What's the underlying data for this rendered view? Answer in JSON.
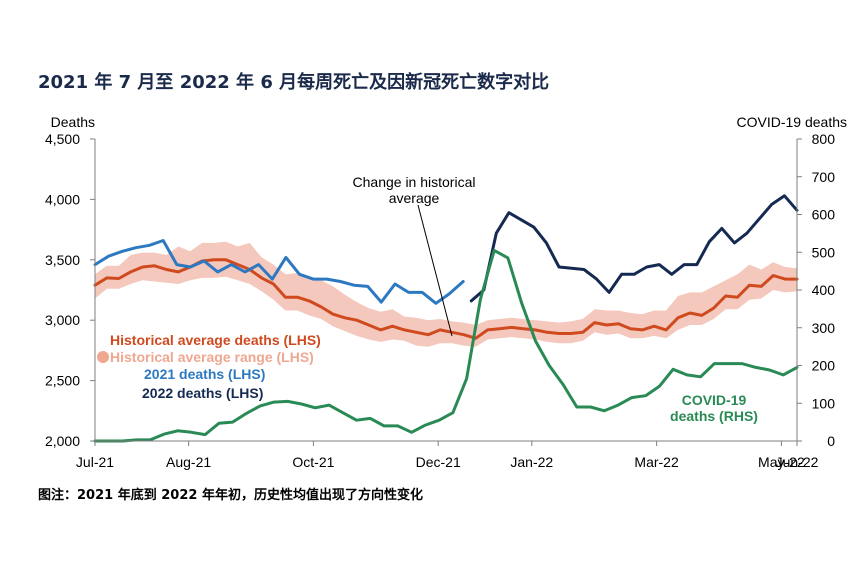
{
  "title": "2021 年 7 月至 2022 年 6 月每周死亡及因新冠死亡数字对比",
  "footnote": "图注：2021 年底到 2022 年年初，历史性均值出现了方向性变化",
  "colors": {
    "hist_avg": "#d04a1f",
    "hist_range": "#f4c8bc",
    "hist_range_legend": "#f0a791",
    "y2021": "#2d79c1",
    "y2022": "#152a52",
    "covid": "#2a8a55"
  },
  "chart_data": {
    "type": "line",
    "x_ticks": [
      "Jul-21",
      "Aug-21",
      "Oct-21",
      "Dec-21",
      "Jan-22",
      "Mar-22",
      "May-22",
      "Jun-22"
    ],
    "y_left": {
      "label": "Deaths",
      "lim": [
        2000,
        4500
      ],
      "ticks": [
        "2,000",
        "2,500",
        "3,000",
        "3,500",
        "4,000",
        "4,500"
      ]
    },
    "y_right": {
      "label": "COVID-19 deaths",
      "lim": [
        0,
        800
      ],
      "ticks": [
        "0",
        "100",
        "200",
        "300",
        "400",
        "500",
        "600",
        "700",
        "800"
      ]
    },
    "legend": [
      {
        "key": "hist_avg",
        "label": "Historical average deaths (LHS)"
      },
      {
        "key": "hist_range",
        "label": "Historical average range (LHS)"
      },
      {
        "key": "y2021",
        "label": "2021 deaths (LHS)"
      },
      {
        "key": "y2022",
        "label": "2022 deaths (LHS)"
      }
    ],
    "annotation": "Change in historical\naverage",
    "covid_label": "COVID-19\ndeaths (RHS)",
    "series": {
      "hist_avg": [
        3290,
        3350,
        3345,
        3400,
        3440,
        3450,
        3420,
        3400,
        3440,
        3490,
        3500,
        3500,
        3460,
        3420,
        3350,
        3300,
        3190,
        3190,
        3160,
        3110,
        3050,
        3020,
        3000,
        2960,
        2920,
        2950,
        2920,
        2900,
        2880,
        2920,
        2900,
        2880,
        2850,
        2920,
        2930,
        2940,
        2930,
        2920,
        2900,
        2890,
        2890,
        2900,
        2980,
        2960,
        2970,
        2930,
        2920,
        2950,
        2920,
        3020,
        3060,
        3040,
        3100,
        3200,
        3190,
        3290,
        3280,
        3370,
        3340,
        3340
      ],
      "hist_upper": [
        3380,
        3450,
        3450,
        3540,
        3560,
        3560,
        3540,
        3610,
        3570,
        3640,
        3640,
        3650,
        3610,
        3640,
        3520,
        3460,
        3380,
        3390,
        3350,
        3330,
        3280,
        3210,
        3150,
        3100,
        3070,
        3090,
        3030,
        3020,
        3000,
        3010,
        2990,
        2980,
        2960,
        3000,
        3010,
        3020,
        3010,
        3000,
        2990,
        2980,
        2990,
        3010,
        3090,
        3080,
        3080,
        3060,
        3050,
        3080,
        3080,
        3200,
        3230,
        3230,
        3280,
        3330,
        3380,
        3460,
        3420,
        3480,
        3440,
        3430
      ],
      "hist_lower": [
        3180,
        3260,
        3260,
        3300,
        3330,
        3320,
        3310,
        3300,
        3330,
        3350,
        3350,
        3360,
        3330,
        3300,
        3240,
        3170,
        3080,
        3080,
        3040,
        3010,
        2950,
        2910,
        2870,
        2840,
        2820,
        2840,
        2830,
        2790,
        2780,
        2810,
        2810,
        2790,
        2780,
        2840,
        2850,
        2860,
        2850,
        2840,
        2820,
        2810,
        2810,
        2830,
        2900,
        2880,
        2890,
        2850,
        2850,
        2870,
        2850,
        2920,
        2960,
        2960,
        3010,
        3090,
        3090,
        3170,
        3180,
        3250,
        3230,
        3240
      ],
      "y2021": [
        3460,
        3530,
        3570,
        3600,
        3620,
        3660,
        3460,
        3440,
        3490,
        3400,
        3460,
        3400,
        3460,
        3340,
        3520,
        3380,
        3340,
        3340,
        3320,
        3290,
        3280,
        3150,
        3300,
        3230,
        3230,
        3140,
        3220,
        3320
      ],
      "y2022": [
        3160,
        3250,
        3720,
        3890,
        3830,
        3770,
        3640,
        3440,
        3430,
        3420,
        3340,
        3230,
        3380,
        3380,
        3440,
        3460,
        3380,
        3460,
        3460,
        3650,
        3760,
        3640,
        3720,
        3840,
        3960,
        4030,
        3910
      ],
      "covid": [
        0,
        0,
        0,
        3,
        3,
        18,
        27,
        23,
        17,
        47,
        50,
        73,
        93,
        103,
        105,
        98,
        88,
        95,
        75,
        55,
        60,
        40,
        40,
        23,
        42,
        55,
        75,
        165,
        375,
        505,
        485,
        365,
        265,
        200,
        150,
        90,
        90,
        80,
        95,
        115,
        120,
        145,
        190,
        175,
        170,
        205,
        205,
        205,
        195,
        188,
        175,
        195
      ]
    }
  }
}
